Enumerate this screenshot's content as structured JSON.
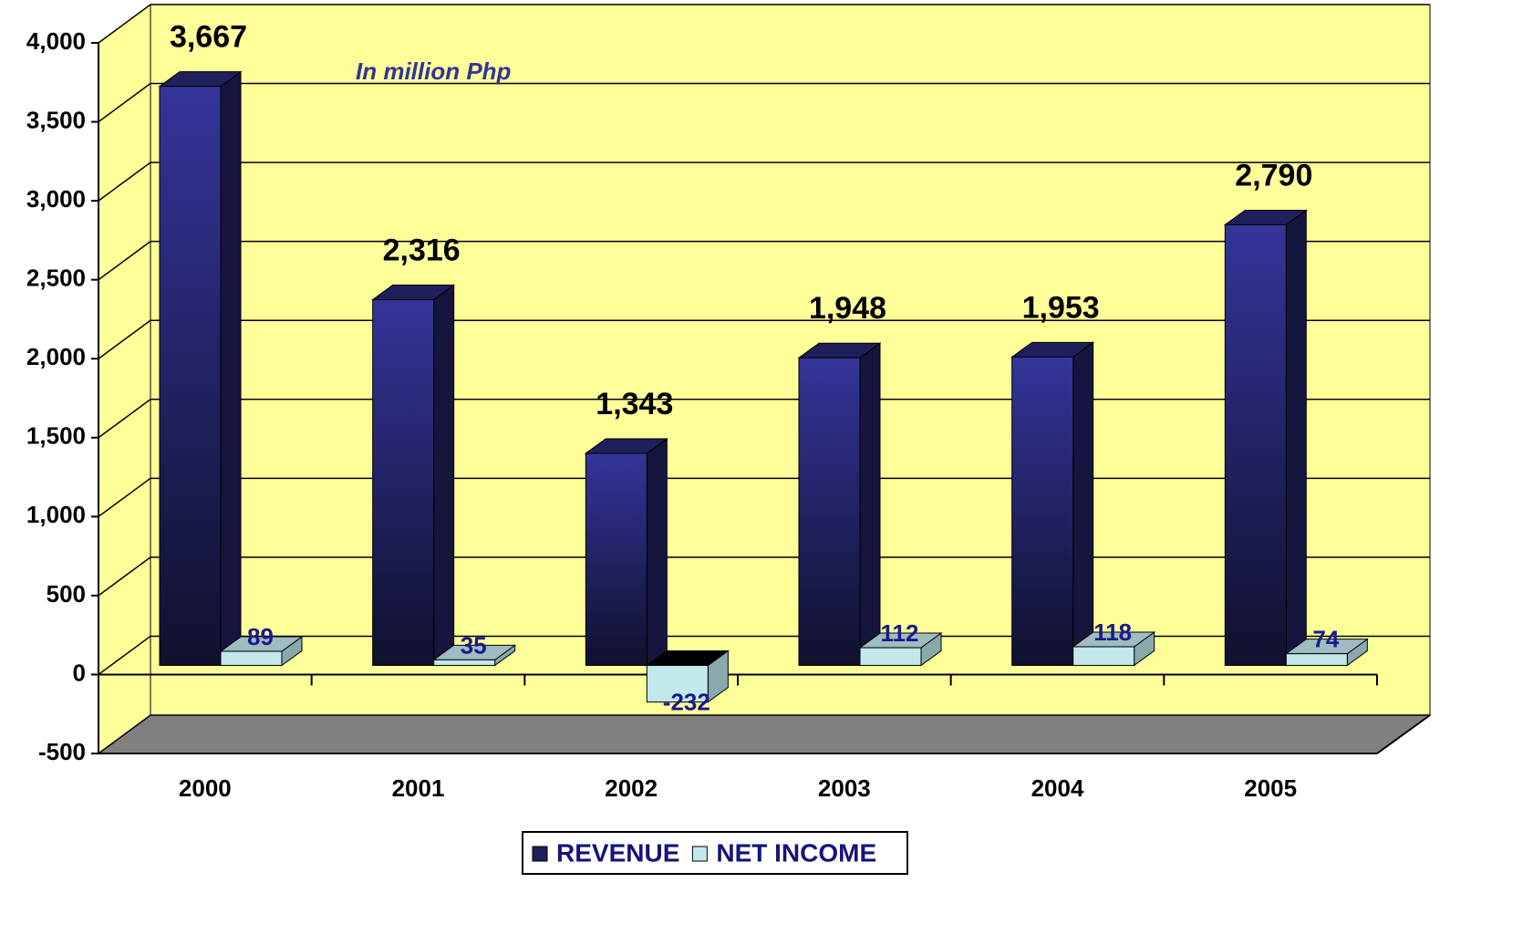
{
  "chart_data": {
    "type": "bar3d",
    "annotation": "In million Php",
    "categories": [
      "2000",
      "2001",
      "2002",
      "2003",
      "2004",
      "2005"
    ],
    "series": [
      {
        "name": "REVENUE",
        "color": "#34349a",
        "values": [
          3667,
          2316,
          1343,
          1948,
          1953,
          2790
        ],
        "value_labels": [
          "3,667",
          "2,316",
          "1,343",
          "1,948",
          "1,953",
          "2,790"
        ]
      },
      {
        "name": "NET INCOME",
        "color": "#c2e8ec",
        "values": [
          89,
          35,
          -232,
          112,
          118,
          74
        ]
      }
    ],
    "ylim": [
      -500,
      4000
    ],
    "yticks": [
      -500,
      0,
      500,
      {
        "value": 1000,
        "label": "1,000"
      },
      {
        "value": 1500,
        "label": "1,500"
      },
      {
        "value": 2000,
        "label": "2,000"
      },
      {
        "value": 2500,
        "label": "2,500"
      },
      {
        "value": 3000,
        "label": "3,000"
      },
      {
        "value": 3500,
        "label": "3,500"
      },
      {
        "value": 4000,
        "label": "4,000"
      }
    ],
    "wall_color": "#ffff99",
    "floor_color": "#808080",
    "grid": true,
    "legend": "bottom"
  }
}
